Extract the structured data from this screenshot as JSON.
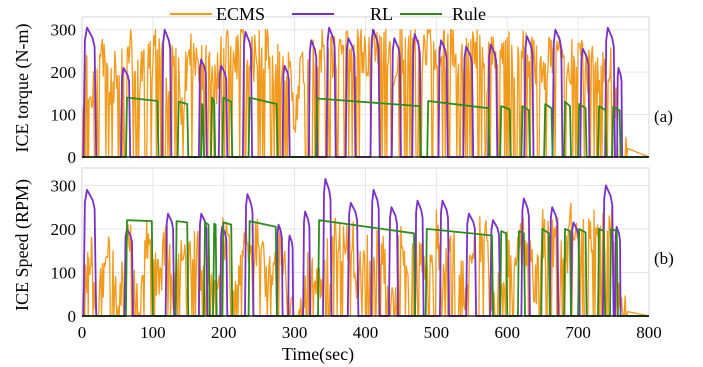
{
  "chart_data": [
    {
      "id": "a",
      "type": "line",
      "panel_label": "(a)",
      "ylabel": "ICE torque (N-m)",
      "xlim": [
        0,
        800
      ],
      "ylim": [
        0,
        330
      ],
      "yticks": [
        0,
        100,
        200,
        300
      ],
      "grid": true,
      "legend": {
        "placement": "top",
        "entries": [
          "ECMS",
          "RL",
          "Rule"
        ]
      },
      "series": [
        {
          "name": "ECMS",
          "color": "#f29a1c",
          "pattern": "dense",
          "x": [
            0,
            5,
            10,
            20,
            30,
            40,
            50,
            60,
            70,
            80,
            90,
            100,
            110,
            120,
            130,
            140,
            150,
            160,
            170,
            180,
            190,
            200,
            210,
            220,
            230,
            240,
            250,
            260,
            270,
            280,
            290,
            300,
            310,
            320,
            330,
            340,
            350,
            360,
            370,
            380,
            390,
            400,
            410,
            420,
            430,
            440,
            450,
            460,
            470,
            480,
            490,
            500,
            510,
            520,
            530,
            540,
            550,
            560,
            570,
            580,
            590,
            600,
            610,
            620,
            630,
            640,
            650,
            660,
            670,
            680,
            690,
            700,
            710,
            720,
            730,
            740,
            750,
            760,
            770
          ],
          "y": [
            0,
            240,
            150,
            220,
            250,
            180,
            235,
            260,
            270,
            190,
            265,
            255,
            280,
            200,
            270,
            150,
            250,
            260,
            220,
            250,
            200,
            280,
            240,
            265,
            290,
            250,
            270,
            285,
            230,
            240,
            265,
            60,
            260,
            220,
            270,
            280,
            260,
            250,
            285,
            230,
            290,
            250,
            270,
            280,
            300,
            230,
            280,
            260,
            290,
            275,
            300,
            250,
            270,
            280,
            230,
            260,
            255,
            270,
            230,
            250,
            220,
            260,
            240,
            270,
            255,
            240,
            200,
            270,
            250,
            280,
            240,
            260,
            220,
            250,
            200,
            230,
            210,
            25,
            20
          ]
        },
        {
          "name": "RL",
          "color": "#7a2fc8",
          "pattern": "pulses",
          "pulses": [
            [
              2,
              20,
              305
            ],
            [
              55,
              68,
              210
            ],
            [
              113,
              126,
              300
            ],
            [
              165,
              176,
              230
            ],
            [
              193,
              205,
              215
            ],
            [
              227,
              240,
              295
            ],
            [
              283,
              293,
              215
            ],
            [
              320,
              332,
              275
            ],
            [
              345,
              358,
              305
            ],
            [
              372,
              386,
              280
            ],
            [
              407,
              420,
              300
            ],
            [
              437,
              450,
              280
            ],
            [
              466,
              478,
              290
            ],
            [
              503,
              516,
              275
            ],
            [
              538,
              552,
              260
            ],
            [
              573,
              586,
              265
            ],
            [
              624,
              637,
              285
            ],
            [
              664,
              678,
              300
            ],
            [
              703,
              716,
              255
            ],
            [
              738,
              752,
              305
            ],
            [
              755,
              762,
              210
            ]
          ]
        },
        {
          "name": "Rule",
          "color": "#2e8b1e",
          "pattern": "plateaus",
          "plateaus": [
            [
              62,
              108,
              140,
              132
            ],
            [
              135,
              150,
              130,
              125
            ],
            [
              168,
              172,
              125,
              120
            ],
            [
              182,
              188,
              140,
              130
            ],
            [
              198,
              212,
              140,
              130
            ],
            [
              235,
              276,
              140,
              125
            ],
            [
              330,
              478,
              138,
              120
            ],
            [
              487,
              575,
              132,
              115
            ],
            [
              590,
              605,
              120,
              112
            ],
            [
              620,
              632,
              120,
              110
            ],
            [
              652,
              664,
              125,
              115
            ],
            [
              680,
              690,
              130,
              120
            ],
            [
              700,
              712,
              125,
              115
            ],
            [
              728,
              740,
              120,
              110
            ],
            [
              748,
              760,
              118,
              110
            ]
          ]
        }
      ]
    },
    {
      "id": "b",
      "type": "line",
      "panel_label": "(b)",
      "ylabel": "ICE Speed (RPM)",
      "xlabel": "Time(sec)",
      "xlim": [
        0,
        800
      ],
      "xticks": [
        0,
        100,
        200,
        300,
        400,
        500,
        600,
        700,
        800
      ],
      "ylim": [
        0,
        340
      ],
      "yticks": [
        0,
        100,
        200,
        300
      ],
      "grid": true,
      "series": [
        {
          "name": "ECMS",
          "color": "#f29a1c",
          "pattern": "dense",
          "x": [
            0,
            8,
            14,
            20,
            30,
            40,
            50,
            60,
            70,
            80,
            90,
            100,
            110,
            120,
            130,
            140,
            150,
            160,
            170,
            180,
            190,
            200,
            210,
            220,
            230,
            240,
            250,
            260,
            270,
            280,
            290,
            300,
            310,
            320,
            330,
            340,
            350,
            360,
            370,
            380,
            390,
            400,
            410,
            420,
            430,
            440,
            450,
            460,
            470,
            480,
            490,
            500,
            510,
            520,
            530,
            540,
            550,
            560,
            570,
            580,
            590,
            600,
            610,
            620,
            630,
            640,
            650,
            660,
            670,
            680,
            690,
            700,
            710,
            720,
            730,
            740,
            750,
            760,
            770
          ],
          "y": [
            0,
            150,
            150,
            20,
            100,
            200,
            30,
            150,
            210,
            40,
            200,
            150,
            100,
            220,
            60,
            180,
            120,
            200,
            80,
            150,
            60,
            210,
            140,
            80,
            200,
            150,
            220,
            100,
            130,
            200,
            60,
            10,
            30,
            130,
            80,
            120,
            150,
            200,
            170,
            210,
            90,
            200,
            130,
            180,
            110,
            70,
            210,
            90,
            190,
            150,
            100,
            210,
            80,
            200,
            180,
            60,
            120,
            200,
            180,
            30,
            70,
            160,
            120,
            200,
            150,
            80,
            220,
            170,
            200,
            100,
            230,
            180,
            200,
            220,
            230,
            200,
            230,
            20,
            10
          ]
        },
        {
          "name": "RL",
          "color": "#7a2fc8",
          "pattern": "pulses",
          "pulses": [
            [
              2,
              20,
              290
            ],
            [
              60,
              72,
              200
            ],
            [
              118,
              130,
              235
            ],
            [
              165,
              177,
              235
            ],
            [
              195,
              205,
              205
            ],
            [
              230,
              242,
              280
            ],
            [
              275,
              283,
              210
            ],
            [
              291,
              298,
              185
            ],
            [
              312,
              322,
              240
            ],
            [
              340,
              352,
              315
            ],
            [
              375,
              390,
              260
            ],
            [
              408,
              420,
              290
            ],
            [
              433,
              446,
              250
            ],
            [
              470,
              482,
              265
            ],
            [
              505,
              518,
              265
            ],
            [
              542,
              556,
              235
            ],
            [
              576,
              590,
              220
            ],
            [
              620,
              632,
              270
            ],
            [
              660,
              672,
              250
            ],
            [
              690,
              702,
              215
            ],
            [
              735,
              750,
              300
            ],
            [
              752,
              760,
              205
            ]
          ]
        },
        {
          "name": "Rule",
          "color": "#2e8b1e",
          "pattern": "plateaus",
          "plateaus": [
            [
              62,
              100,
              220,
              218
            ],
            [
              132,
              150,
              218,
              215
            ],
            [
              172,
              180,
              215,
              210
            ],
            [
              185,
              190,
              212,
              210
            ],
            [
              198,
              212,
              215,
              210
            ],
            [
              235,
              275,
              218,
              205
            ],
            [
              333,
              470,
              220,
              190
            ],
            [
              485,
              580,
              200,
              185
            ],
            [
              590,
              600,
              195,
              190
            ],
            [
              615,
              625,
              195,
              190
            ],
            [
              648,
              660,
              200,
              190
            ],
            [
              680,
              690,
              200,
              195
            ],
            [
              700,
              712,
              200,
              192
            ],
            [
              728,
              738,
              200,
              195
            ],
            [
              745,
              756,
              200,
              195
            ]
          ]
        }
      ]
    }
  ]
}
